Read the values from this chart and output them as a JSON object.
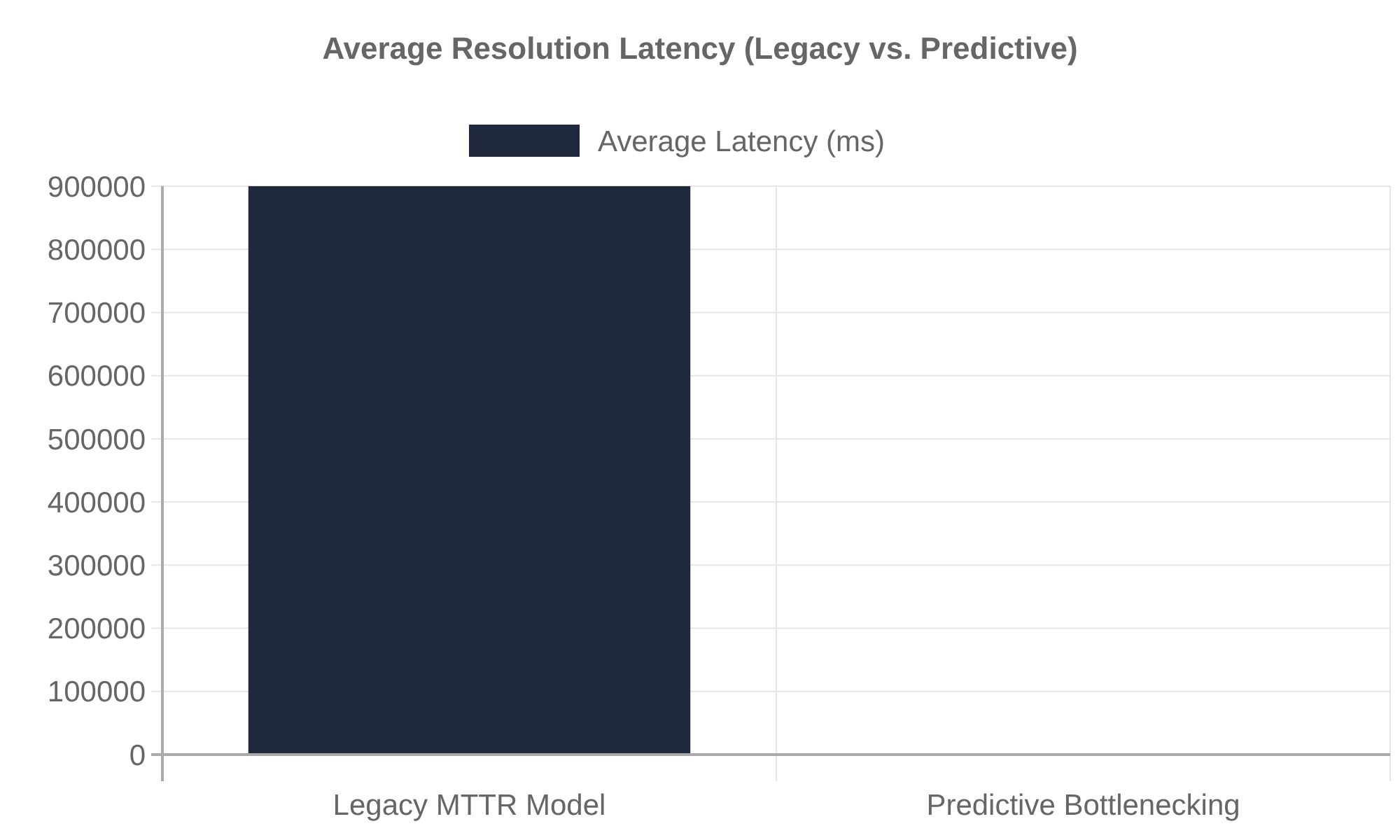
{
  "chart_data": {
    "type": "bar",
    "title": "Average Resolution Latency (Legacy vs. Predictive)",
    "categories": [
      "Legacy MTTR Model",
      "Predictive Bottlenecking"
    ],
    "series": [
      {
        "name": "Average Latency (ms)",
        "color": "#1f293b",
        "values": [
          900000,
          0
        ]
      }
    ],
    "ylim": [
      0,
      900000
    ],
    "yticks": [
      0,
      100000,
      200000,
      300000,
      400000,
      500000,
      600000,
      700000,
      800000,
      900000
    ],
    "grid": true,
    "legend": "top"
  }
}
